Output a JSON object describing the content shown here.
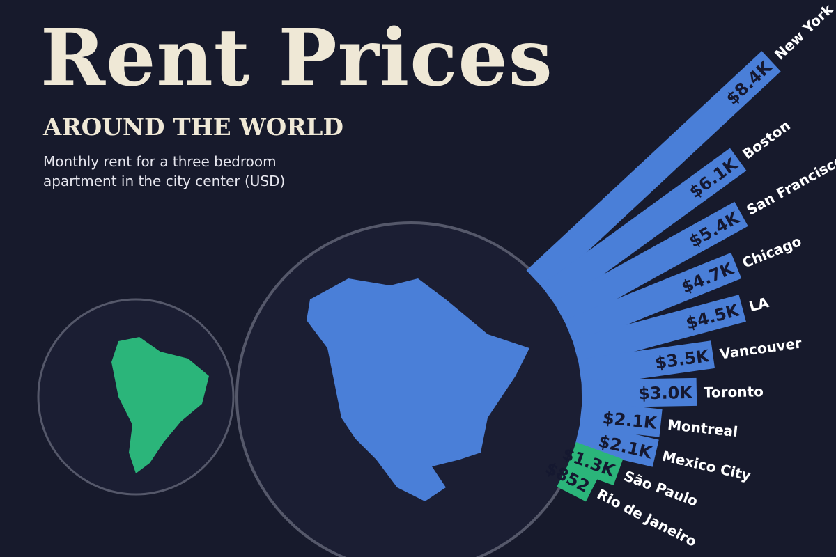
{
  "chart_data": {
    "type": "radial-bar",
    "title": "Rent Prices",
    "subtitle": "AROUND THE WORLD",
    "description": "Monthly rent for a three bedroom apartment in the city center (USD)",
    "categories": [
      "New York",
      "Boston",
      "San Francisco",
      "Chicago",
      "LA",
      "Vancouver",
      "Toronto",
      "Montreal",
      "Mexico City",
      "São Paulo",
      "Rio de Janeiro"
    ],
    "values": [
      8400,
      6100,
      5400,
      4700,
      4500,
      3500,
      3000,
      2100,
      2100,
      1300,
      852
    ],
    "value_labels": [
      "$8.4K",
      "$6.1K",
      "$5.4K",
      "$4.7K",
      "$4.5K",
      "$3.5K",
      "$3.0K",
      "$2.1K",
      "$2.1K",
      "$1.3K",
      "$852"
    ],
    "colors": [
      "#4a7fd8",
      "#4a7fd8",
      "#4a7fd8",
      "#4a7fd8",
      "#4a7fd8",
      "#4a7fd8",
      "#4a7fd8",
      "#4a7fd8",
      "#4a7fd8",
      "#2bb57a",
      "#2bb57a"
    ]
  }
}
